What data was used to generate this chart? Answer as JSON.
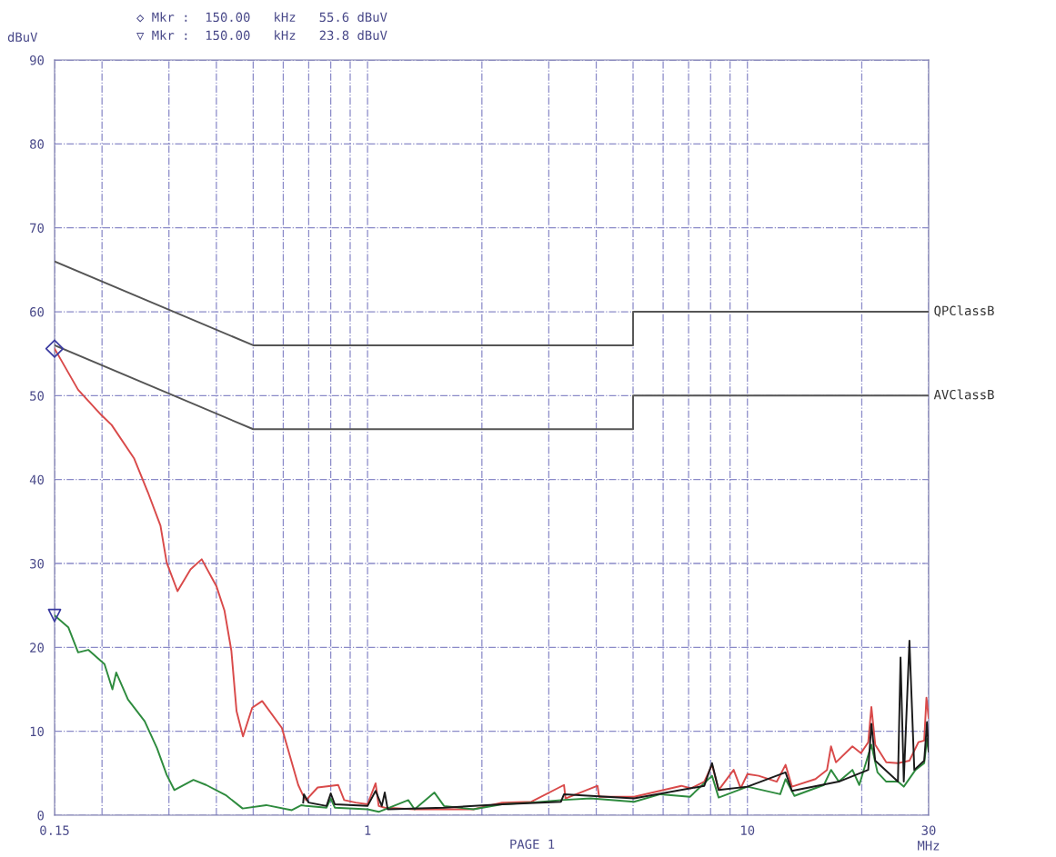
{
  "chart_data": {
    "type": "line",
    "xlabel": "MHz",
    "ylabel": "dBuV",
    "log": "x",
    "grid": true,
    "legend": false,
    "line_style": "solid",
    "marker": "none",
    "xlim": [
      0.15,
      30
    ],
    "ylim": [
      0,
      90
    ],
    "xticks": [
      {
        "value": 0.15,
        "label": "0.15"
      },
      {
        "value": 0.2,
        "label": null
      },
      {
        "value": 0.3,
        "label": null
      },
      {
        "value": 0.4,
        "label": null
      },
      {
        "value": 0.5,
        "label": null
      },
      {
        "value": 0.6,
        "label": null
      },
      {
        "value": 0.7,
        "label": null
      },
      {
        "value": 0.8,
        "label": null
      },
      {
        "value": 0.9,
        "label": null
      },
      1,
      {
        "value": 2,
        "label": null
      },
      {
        "value": 3,
        "label": null
      },
      {
        "value": 4,
        "label": null
      },
      {
        "value": 5,
        "label": null
      },
      {
        "value": 6,
        "label": null
      },
      {
        "value": 7,
        "label": null
      },
      {
        "value": 8,
        "label": null
      },
      {
        "value": 9,
        "label": null
      },
      10,
      {
        "value": 20,
        "label": null
      },
      30
    ],
    "yticks": [
      0,
      10,
      20,
      30,
      40,
      50,
      60,
      70,
      80,
      90
    ],
    "annotations": [
      "◇ Mkr :  150.00   kHz   55.6 dBuV",
      "▽ Mkr :  150.00   kHz   23.8 dBuV",
      "PAGE 1"
    ],
    "series": [
      {
        "name": "QPClassB",
        "color": "#555555",
        "x": [
          0.15,
          0.5,
          5,
          5,
          30
        ],
        "values": [
          66,
          56,
          56,
          60,
          60
        ]
      },
      {
        "name": "AVClassB",
        "color": "#555555",
        "x": [
          0.15,
          0.5,
          5,
          5,
          30
        ],
        "values": [
          56,
          46,
          46,
          50,
          50
        ]
      },
      {
        "color": "#d94a4a",
        "x": [
          0.15,
          0.173,
          0.199,
          0.212,
          0.243,
          0.264,
          0.285,
          0.296,
          0.316,
          0.342,
          0.366,
          0.4,
          0.42,
          0.438,
          0.452,
          0.47,
          0.497,
          0.528,
          0.595,
          0.657,
          0.676,
          0.689,
          0.739,
          0.801,
          0.837,
          0.868,
          0.931,
          1.0,
          1.05,
          1.07,
          1.11,
          1.33,
          1.59,
          1.9,
          2.26,
          2.7,
          3.29,
          3.32,
          4.03,
          4.07,
          5.03,
          6.7,
          7.1,
          7.7,
          8.07,
          8.4,
          9.2,
          9.6,
          10,
          10.7,
          11.95,
          12.6,
          13.1,
          15.1,
          16.2,
          16.6,
          17.1,
          18.9,
          19.9,
          20.8,
          21.2,
          21.7,
          23.2,
          24.9,
          26.7,
          28.2,
          29.2,
          29.6,
          30
        ],
        "values": [
          55.6,
          50.7,
          47.7,
          46.5,
          42.5,
          38.5,
          34.5,
          30.1,
          26.7,
          29.3,
          30.5,
          27.3,
          24.4,
          19.6,
          12.4,
          9.4,
          12.8,
          13.6,
          10.4,
          3.6,
          2.4,
          1.8,
          3.3,
          3.5,
          3.6,
          1.8,
          1.5,
          1.3,
          3.8,
          1.1,
          0.9,
          0.7,
          0.7,
          0.7,
          1.5,
          1.6,
          3.6,
          2.0,
          3.5,
          2.2,
          2.2,
          3.5,
          3.2,
          4.0,
          6.0,
          3.0,
          5.4,
          3.2,
          4.9,
          4.7,
          4.0,
          6.0,
          3.4,
          4.3,
          5.4,
          8.2,
          6.3,
          8.2,
          7.4,
          8.7,
          12.9,
          8.4,
          6.3,
          6.2,
          6.5,
          8.7,
          8.9,
          14.0,
          11.6
        ]
      },
      {
        "color": "#2e8b3e",
        "x": [
          0.15,
          0.163,
          0.173,
          0.184,
          0.203,
          0.213,
          0.218,
          0.234,
          0.259,
          0.279,
          0.296,
          0.31,
          0.348,
          0.376,
          0.423,
          0.469,
          0.541,
          0.632,
          0.67,
          0.689,
          0.78,
          0.8,
          0.82,
          1.0,
          1.07,
          1.28,
          1.33,
          1.5,
          1.59,
          1.9,
          2.26,
          2.7,
          3.23,
          3.87,
          5.03,
          5.9,
          7.06,
          8.07,
          8.4,
          10,
          12.2,
          12.6,
          13.3,
          15.9,
          16.6,
          17.4,
          18.9,
          19.7,
          21.2,
          22.0,
          23.2,
          24.9,
          25.8,
          27.7,
          29.2,
          29.7,
          30
        ],
        "values": [
          23.8,
          22.4,
          19.4,
          19.7,
          18.0,
          15.0,
          17.0,
          13.8,
          11.2,
          8.0,
          4.8,
          3.0,
          4.2,
          3.6,
          2.4,
          0.8,
          1.2,
          0.6,
          1.2,
          1.1,
          0.9,
          2.0,
          0.9,
          0.7,
          0.4,
          1.8,
          0.7,
          2.7,
          1.1,
          0.7,
          1.3,
          1.5,
          1.8,
          2.0,
          1.6,
          2.5,
          2.2,
          4.7,
          2.1,
          3.4,
          2.5,
          4.3,
          2.3,
          3.6,
          5.4,
          4.0,
          5.4,
          3.6,
          8.4,
          5.1,
          4.0,
          4.0,
          3.4,
          5.4,
          6.2,
          9.1,
          7.6
        ]
      },
      {
        "color": "#1a1a1a",
        "x": [
          0.677,
          0.68,
          0.7,
          0.78,
          0.8,
          0.82,
          1.0,
          1.05,
          1.09,
          1.11,
          1.13,
          1.59,
          2.26,
          3.23,
          3.29,
          5.03,
          7.7,
          8.07,
          8.4,
          10,
          12.6,
          13.1,
          17.4,
          20.8,
          21.2,
          21.7,
          24.9,
          25.3,
          25.8,
          26.7,
          27.5,
          29.2,
          29.7,
          30
        ],
        "values": [
          1.5,
          2.5,
          1.5,
          1.1,
          2.6,
          1.3,
          1.1,
          2.9,
          1.1,
          2.7,
          0.7,
          0.9,
          1.3,
          1.6,
          2.5,
          2.0,
          3.5,
          6.2,
          3.0,
          3.4,
          5.1,
          2.9,
          4.0,
          5.4,
          10.9,
          6.5,
          4.0,
          18.8,
          4.0,
          20.8,
          5.4,
          6.5,
          11.1,
          7.6
        ]
      },
      {
        "type": "scatter",
        "marker": "diamond",
        "color": "#3a3aa0",
        "x": [
          0.15
        ],
        "values": [
          55.6
        ]
      },
      {
        "type": "scatter",
        "marker": "triangle",
        "color": "#3a3aa0",
        "x": [
          0.15
        ],
        "values": [
          23.8
        ]
      }
    ]
  }
}
